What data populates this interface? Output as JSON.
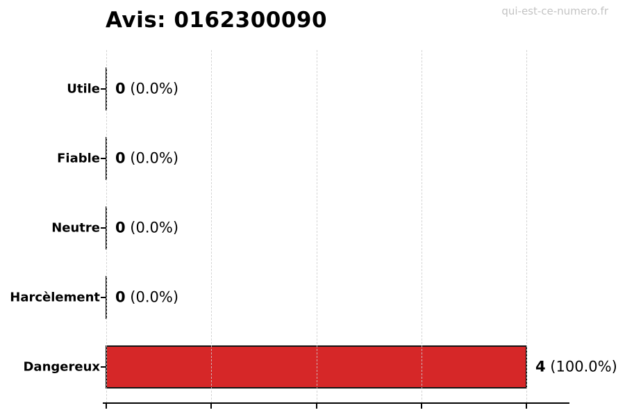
{
  "title": "Avis: 0162300090",
  "watermark": "qui-est-ce-numero.fr",
  "colors": {
    "bar_fill": "#d62728",
    "bar_edge": "#141414",
    "grid": "#cdcdcd",
    "watermark_text": "#c3c3c3",
    "axis": "#000000",
    "background": "#ffffff"
  },
  "chart_data": {
    "type": "bar",
    "orientation": "horizontal",
    "title": "Avis: 0162300090",
    "categories": [
      "Utile",
      "Fiable",
      "Neutre",
      "Harcèlement",
      "Dangereux"
    ],
    "values": [
      0,
      0,
      0,
      0,
      4
    ],
    "value_labels": [
      "0",
      "0",
      "0",
      "0",
      "4"
    ],
    "pct_labels": [
      "(0.0%)",
      "(0.0%)",
      "(0.0%)",
      "(0.0%)",
      "(100.0%)"
    ],
    "xlim": [
      0,
      4
    ],
    "xticks": [
      0,
      1,
      2,
      3,
      4
    ],
    "grid": "vertical-dashed",
    "legend": "none",
    "xlabel": "",
    "ylabel": ""
  }
}
